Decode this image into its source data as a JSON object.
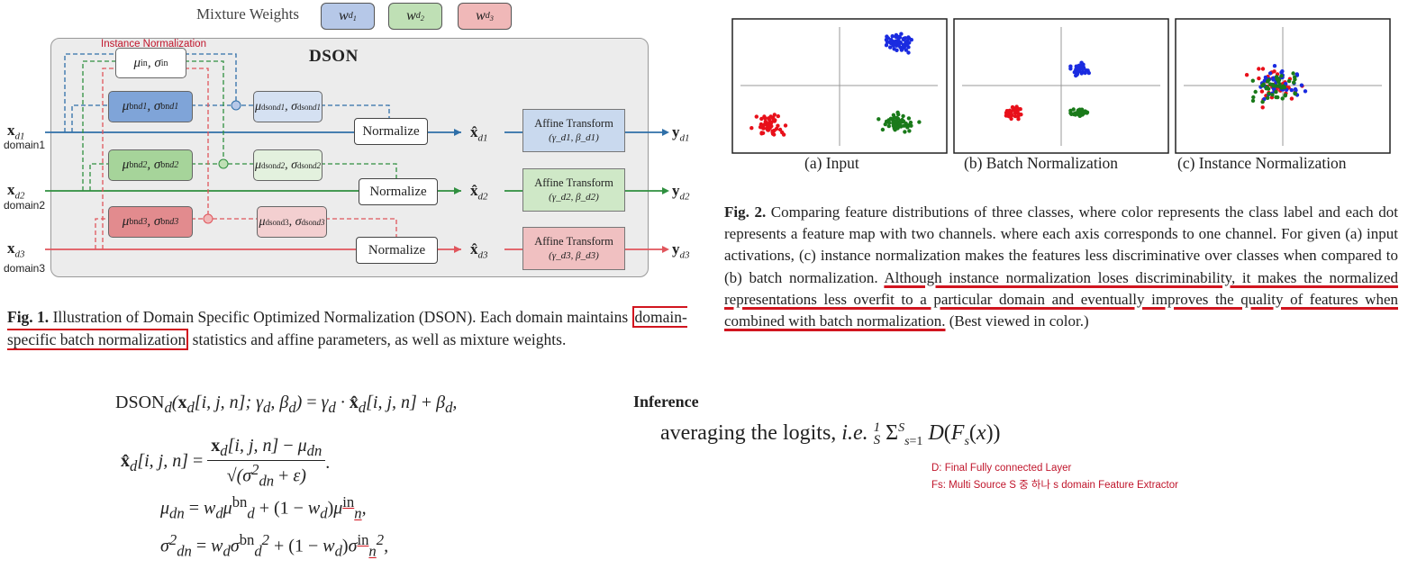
{
  "fig1": {
    "mixture_weights_label": "Mixture Weights",
    "weights": [
      "w_d1",
      "w_d2",
      "w_d3"
    ],
    "weight_colors": [
      "#b6c8e8",
      "#bfe0b5",
      "#f0b8b8"
    ],
    "dson_title": "DSON",
    "instance_norm_label": "Instance Normalization",
    "in_stats": "μ^in, σ^in",
    "bn_stats": [
      "μ_d1^bn, σ_d1^bn",
      "μ_d2^bn, σ_d2^bn",
      "μ_d3^bn, σ_d3^bn"
    ],
    "dson_stats": [
      "μ_d1^dson, σ_d1^dson",
      "μ_d2^dson, σ_d2^dson",
      "μ_d3^dson, σ_d3^dson"
    ],
    "normalize_label": "Normalize",
    "affine_label": "Affine Transform",
    "affine_params": [
      "(γ_d1, β_d1)",
      "(γ_d2, β_d2)",
      "(γ_d3, β_d3)"
    ],
    "inputs": [
      "x_d1",
      "x_d2",
      "x_d3"
    ],
    "domain_labels": [
      "domain1",
      "domain2",
      "domain3"
    ],
    "normalized": [
      "x̂_d1",
      "x̂_d2",
      "x̂_d3"
    ],
    "outputs": [
      "y_d1",
      "y_d2",
      "y_d3"
    ],
    "line_colors": [
      "#2f6fa8",
      "#2f8f3f",
      "#e0555c"
    ],
    "caption_bold": "Fig. 1.",
    "caption_pre": " Illustration of Domain Specific Optimized Normalization (DSON). Each domain maintains ",
    "caption_highlight": "domain-specific batch normalization",
    "caption_post": " statistics and affine parameters, as well as mixture weights."
  },
  "fig2": {
    "panel_labels": [
      "(a) Input",
      "(b) Batch Normalization",
      "(c) Instance Normalization"
    ],
    "caption_bold": "Fig. 2.",
    "caption_pre": " Comparing feature distributions of three classes, where color represents the class label and each dot represents a feature map with two channels. where each axis corresponds to one channel. For given (a) input activations, (c) instance normalization makes the features less discriminative over classes when compared to (b) batch normalization. ",
    "caption_underlined": "Although instance normalization loses discriminability, it makes the normalized representations less overfit to a particular domain and eventually improves the quality of features when combined with batch normalization.",
    "caption_post": " (Best viewed in color.)",
    "class_colors": [
      "#e8101a",
      "#1a2be0",
      "#1a7a1a"
    ]
  },
  "equations": {
    "dson_lhs": "DSON",
    "line1": "DSON_d(x_d[i, j, n]; γ_d, β_d) = γ_d · x̂_d[i, j, n] + β_d,",
    "line2": "x̂_d[i, j, n] = (x_d[i, j, n] − μ_dn) / sqrt(σ²_dn + ε).",
    "line3": "μ_dn = w_d μ_d^bn + (1 − w_d) μ_n^in,",
    "line4": "σ²_dn = w_d σ_d^bn² + (1 − w_d) σ_n^in²,"
  },
  "inference": {
    "title": "Inference",
    "formula": "averaging the logits, i.e. (1/S) Σ_{s=1}^{S} D(F_s(x))",
    "note1": "D: Final Fully connected Layer",
    "note2": "Fs: Multi Source S 중 하나 s domain Feature Extractor"
  }
}
